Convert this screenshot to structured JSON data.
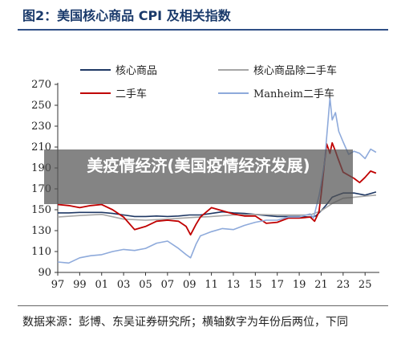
{
  "header": {
    "title": "图2：美国核心商品 CPI 及相关指数"
  },
  "source_note": "数据来源：彭博、东吴证券研究所；横轴数字为年份后两位，下同",
  "watermark": "美疫情经济(美国疫情经济发展)",
  "colors": {
    "core_goods": "#1f3864",
    "core_ex_used": "#a6a6a6",
    "used_cars": "#c00000",
    "manheim": "#8eaadb",
    "title": "#1a3a6b"
  },
  "chart_data": {
    "type": "line",
    "title": "",
    "xlabel": "",
    "ylabel": "",
    "ylim": [
      90,
      270
    ],
    "yticks": [
      90,
      110,
      130,
      150,
      170,
      190,
      210,
      230,
      250,
      270
    ],
    "xlim": [
      1997,
      2026.3
    ],
    "xticks": [
      1997,
      1999,
      2001,
      2003,
      2005,
      2007,
      2009,
      2011,
      2013,
      2015,
      2017,
      2019,
      2021,
      2023,
      2025
    ],
    "xtick_labels": [
      "97",
      "99",
      "01",
      "03",
      "05",
      "07",
      "09",
      "11",
      "13",
      "15",
      "17",
      "19",
      "21",
      "23",
      "25"
    ],
    "grid": false,
    "legend": "top",
    "series": [
      {
        "name": "核心商品",
        "x": [
          1997,
          1998,
          1999,
          2000,
          2001,
          2002,
          2003,
          2004,
          2005,
          2006,
          2007,
          2008,
          2009,
          2010,
          2011,
          2012,
          2013,
          2014,
          2015,
          2016,
          2017,
          2018,
          2019,
          2020,
          2020.5,
          2021,
          2021.5,
          2022,
          2022.5,
          2023,
          2024,
          2025,
          2026
        ],
        "values": [
          147,
          147,
          147.5,
          147.5,
          147.5,
          146.5,
          145,
          143.5,
          143.5,
          144,
          143.5,
          144,
          145,
          145,
          146.5,
          148,
          147,
          146.5,
          145.5,
          144.5,
          143.5,
          143.5,
          143.5,
          143,
          144,
          149,
          155,
          162,
          164,
          166,
          166,
          164,
          167
        ]
      },
      {
        "name": "核心商品除二手车",
        "x": [
          1997,
          1999,
          2001,
          2003,
          2005,
          2007,
          2009,
          2011,
          2013,
          2015,
          2017,
          2019,
          2020,
          2021,
          2022,
          2023,
          2024,
          2025,
          2026
        ],
        "values": [
          143,
          144.5,
          145.5,
          141,
          140,
          141,
          142.5,
          143.5,
          145,
          145.5,
          145,
          145,
          145,
          149,
          156,
          161,
          162,
          163,
          164
        ]
      },
      {
        "name": "二手车",
        "x": [
          1997,
          1998,
          1999,
          2000,
          2001,
          2002,
          2003,
          2004,
          2005,
          2006,
          2007,
          2008,
          2008.7,
          2009.1,
          2009.6,
          2010,
          2011,
          2012,
          2013,
          2014,
          2015,
          2016,
          2017,
          2018,
          2019,
          2020,
          2020.4,
          2020.8,
          2021,
          2021.3,
          2021.5,
          2021.8,
          2022,
          2022.3,
          2022.5,
          2023,
          2023.5,
          2024,
          2024.5,
          2025,
          2025.5,
          2026
        ],
        "values": [
          155,
          154,
          152,
          154,
          155,
          150,
          143,
          131,
          134,
          139,
          140,
          139,
          134,
          126,
          136,
          143,
          152,
          149,
          146,
          144,
          144,
          137,
          138,
          142,
          142,
          143,
          139,
          148,
          165,
          195,
          213,
          204,
          214,
          206,
          200,
          186,
          183,
          180,
          176,
          181,
          187,
          185
        ]
      },
      {
        "name": "Manheim二手车",
        "x": [
          1997,
          1998,
          1999,
          2000,
          2001,
          2002,
          2003,
          2004,
          2005,
          2006,
          2007,
          2008,
          2008.7,
          2009.1,
          2009.6,
          2010,
          2011,
          2012,
          2013,
          2014,
          2015,
          2016,
          2017,
          2018,
          2019,
          2020,
          2020.3,
          2020.8,
          2021,
          2021.3,
          2021.6,
          2021.8,
          2022,
          2022.3,
          2022.6,
          2023,
          2023.5,
          2024,
          2024.5,
          2025,
          2025.5,
          2026
        ],
        "values": [
          100,
          99,
          104,
          106,
          107,
          110,
          112,
          111,
          113,
          118,
          120,
          113,
          107,
          104,
          117,
          125,
          129,
          132,
          131,
          135,
          138,
          140,
          140,
          143,
          143,
          146,
          142,
          163,
          175,
          195,
          232,
          257,
          236,
          243,
          225,
          215,
          203,
          206,
          204,
          199,
          208,
          205
        ]
      }
    ]
  }
}
